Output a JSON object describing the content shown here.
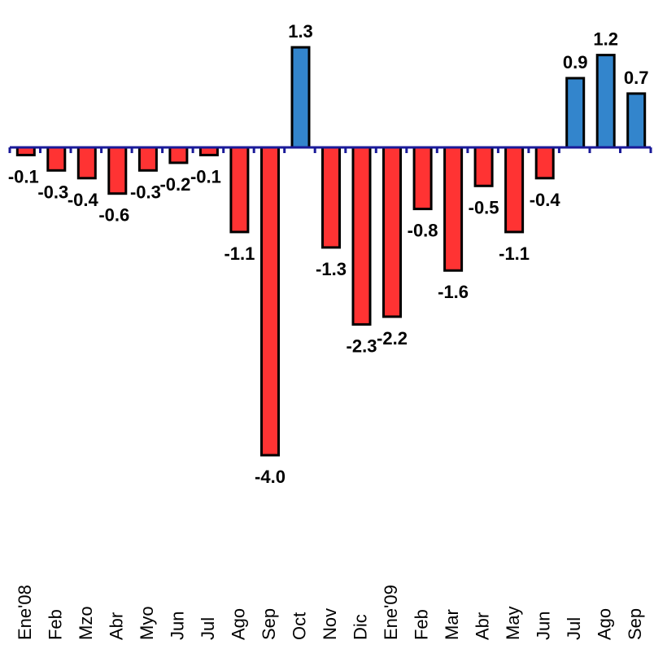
{
  "chart_data": {
    "type": "bar",
    "title": "",
    "xlabel": "",
    "ylabel": "",
    "ylim": [
      -4.0,
      1.3
    ],
    "grid": false,
    "categories": [
      "Ene'08",
      "Feb",
      "Mzo",
      "Abr",
      "Myo",
      "Jun",
      "Jul",
      "Ago",
      "Sep",
      "Oct",
      "Nov",
      "Dic",
      "Ene'09",
      "Feb",
      "Mar",
      "Abr",
      "May",
      "Jun",
      "Jul",
      "Ago",
      "Sep"
    ],
    "values": [
      -0.1,
      -0.3,
      -0.4,
      -0.6,
      -0.3,
      -0.2,
      -0.1,
      -1.1,
      -4.0,
      1.3,
      -1.3,
      -2.3,
      -2.2,
      -0.8,
      -1.6,
      -0.5,
      -1.1,
      -0.4,
      0.9,
      1.2,
      0.7
    ],
    "value_labels": [
      "-0.1",
      "-0.3",
      "-0.4",
      "-0.6",
      "-0.3",
      "-0.2",
      "-0.1",
      "-1.1",
      "-4.0",
      "1.3",
      "-1.3",
      "-2.3",
      "-2.2",
      "-0.8",
      "-1.6",
      "-0.5",
      "-1.1",
      "-0.4",
      "0.9",
      "1.2",
      "0.7"
    ],
    "colors": {
      "negative": "#ff3333",
      "positive": "#3385cc",
      "axis": "#1a1a99",
      "outline": "#000000"
    }
  }
}
